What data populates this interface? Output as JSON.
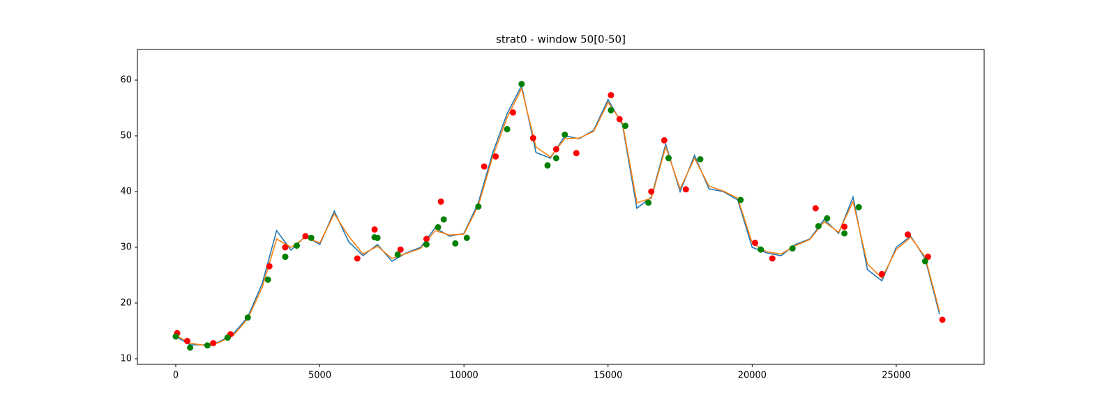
{
  "chart_data": {
    "type": "line",
    "title": "strat0 - window 50[0-50]",
    "x": [
      0,
      500,
      1000,
      1500,
      2000,
      2500,
      3000,
      3500,
      4000,
      4500,
      5000,
      5500,
      6000,
      6500,
      7000,
      7500,
      8000,
      8500,
      9000,
      9500,
      10000,
      10500,
      11000,
      11500,
      12000,
      12500,
      13000,
      13500,
      14000,
      14500,
      15000,
      15500,
      16000,
      16500,
      17000,
      17500,
      18000,
      18500,
      19000,
      19500,
      20000,
      20500,
      21000,
      21500,
      22000,
      22500,
      23000,
      23500,
      24000,
      24500,
      25000,
      25500,
      26000,
      26500
    ],
    "series": [
      {
        "color": "#1f77b4",
        "values": [
          14,
          12.5,
          12.5,
          13,
          14.5,
          17.5,
          23.5,
          33,
          29.5,
          32,
          30.5,
          36.5,
          31,
          28.5,
          30.5,
          27.5,
          29,
          30,
          33.5,
          32,
          32.5,
          38,
          47,
          54,
          59,
          47,
          46,
          50,
          49.5,
          51,
          56.5,
          52,
          37,
          39,
          48.5,
          40,
          46.5,
          40.5,
          40,
          38.5,
          30,
          29,
          28.5,
          30.5,
          31.5,
          35,
          32.5,
          39,
          26,
          24,
          30,
          32,
          28,
          18
        ]
      },
      {
        "color": "#ff7f0e",
        "values": [
          14.2,
          12.8,
          12.4,
          12.9,
          14.2,
          17.2,
          22.8,
          31.5,
          30,
          31.8,
          30.8,
          36,
          32,
          28.8,
          30.2,
          28,
          28.9,
          29.8,
          33,
          32.2,
          32.4,
          37.5,
          46.3,
          53.3,
          58.5,
          48,
          46.2,
          49.5,
          49.6,
          50.8,
          56,
          52.3,
          38,
          38.8,
          48,
          40.5,
          46,
          41,
          40.1,
          38.8,
          30.8,
          29.2,
          28.8,
          30.3,
          31.4,
          34.6,
          32.7,
          38.2,
          27,
          24.5,
          29.6,
          31.8,
          28.3,
          18.5
        ]
      }
    ],
    "scatter": [
      {
        "color": "#ff0000",
        "x": [
          50,
          400,
          1300,
          1900,
          3250,
          3800,
          4500,
          6300,
          6900,
          7800,
          8700,
          9200,
          10700,
          11100,
          11700,
          12400,
          13200,
          13900,
          15100,
          15400,
          16500,
          16950,
          17700,
          20100,
          20700,
          22200,
          23200,
          24500,
          25400,
          26100,
          26600
        ],
        "values": [
          14.6,
          13.2,
          12.8,
          14.4,
          26.6,
          30,
          32,
          28,
          33.2,
          29.6,
          31.5,
          38.2,
          44.5,
          46.3,
          54.2,
          49.6,
          47.6,
          46.9,
          57.3,
          53,
          40,
          49.2,
          40.4,
          30.8,
          28,
          37,
          33.7,
          25.2,
          32.3,
          28.3,
          17
        ]
      },
      {
        "color": "#008000",
        "x": [
          0,
          500,
          1100,
          1800,
          2500,
          3200,
          3800,
          4200,
          4700,
          6900,
          7000,
          7700,
          8700,
          9100,
          9300,
          9700,
          10100,
          10500,
          11500,
          12000,
          12900,
          13200,
          13500,
          15100,
          15600,
          16400,
          17100,
          18200,
          19600,
          20300,
          21400,
          22300,
          22600,
          23200,
          23700,
          26000
        ],
        "values": [
          14,
          12,
          12.4,
          13.8,
          17.4,
          24.2,
          28.3,
          30.3,
          31.7,
          31.8,
          31.7,
          28.7,
          30.5,
          33.6,
          35,
          30.7,
          31.7,
          37.3,
          51.2,
          59.3,
          44.7,
          46,
          50.2,
          54.6,
          51.8,
          38,
          46,
          45.8,
          38.5,
          29.6,
          29.8,
          33.8,
          35.2,
          32.5,
          37.2,
          27.5
        ]
      }
    ],
    "xlim": [
      -1330,
      28050
    ],
    "ylim": [
      9,
      65.5
    ],
    "xticks": [
      0,
      5000,
      10000,
      15000,
      20000,
      25000
    ],
    "yticks": [
      10,
      20,
      30,
      40,
      50,
      60
    ],
    "grid": false
  }
}
